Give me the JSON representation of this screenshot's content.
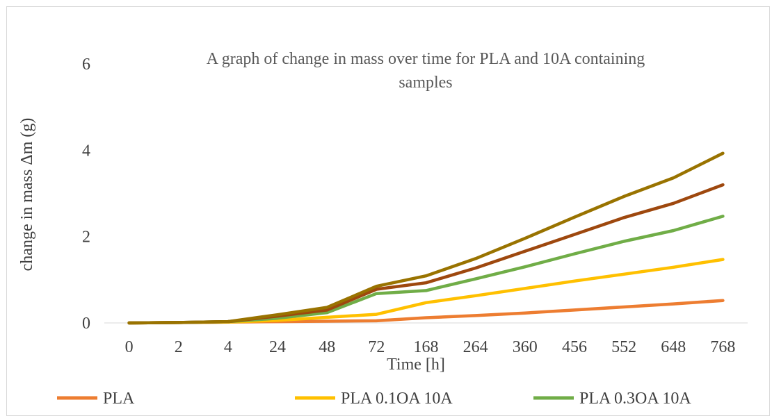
{
  "chart_data": {
    "type": "line",
    "title_lines": [
      "A graph of change in mass over time for PLA and 10A containing",
      "samples"
    ],
    "xlabel": "Time [h]",
    "ylabel": "change in mass Δm (g)",
    "categories": [
      "0",
      "2",
      "4",
      "24",
      "48",
      "72",
      "168",
      "264",
      "360",
      "456",
      "552",
      "648",
      "768"
    ],
    "ylim": [
      0,
      6
    ],
    "yticks": [
      "0",
      "2",
      "4",
      "6"
    ],
    "grid": false,
    "legend_position": "bottom",
    "series": [
      {
        "name": "PLA",
        "color": "#ED7D31",
        "values": [
          0,
          0.01,
          0.02,
          0.03,
          0.04,
          0.05,
          0.12,
          0.17,
          0.23,
          0.3,
          0.37,
          0.44,
          0.52
        ]
      },
      {
        "name": "PLA 0.1OA 10A",
        "color": "#FFC000",
        "values": [
          0,
          0.01,
          0.02,
          0.06,
          0.13,
          0.2,
          0.47,
          0.63,
          0.8,
          0.97,
          1.13,
          1.29,
          1.47
        ]
      },
      {
        "name": "PLA 0.3OA 10A",
        "color": "#70AD47",
        "values": [
          0,
          0.01,
          0.03,
          0.11,
          0.24,
          0.68,
          0.75,
          1.02,
          1.3,
          1.6,
          1.89,
          2.14,
          2.47
        ]
      },
      {
        "name": "",
        "color": "#9E480E",
        "values": [
          0,
          0.01,
          0.03,
          0.16,
          0.3,
          0.78,
          0.93,
          1.27,
          1.66,
          2.05,
          2.44,
          2.77,
          3.2
        ]
      },
      {
        "name": "",
        "color": "#997300",
        "values": [
          0,
          0.01,
          0.03,
          0.19,
          0.36,
          0.85,
          1.09,
          1.49,
          1.96,
          2.45,
          2.93,
          3.36,
          3.93
        ]
      }
    ]
  }
}
